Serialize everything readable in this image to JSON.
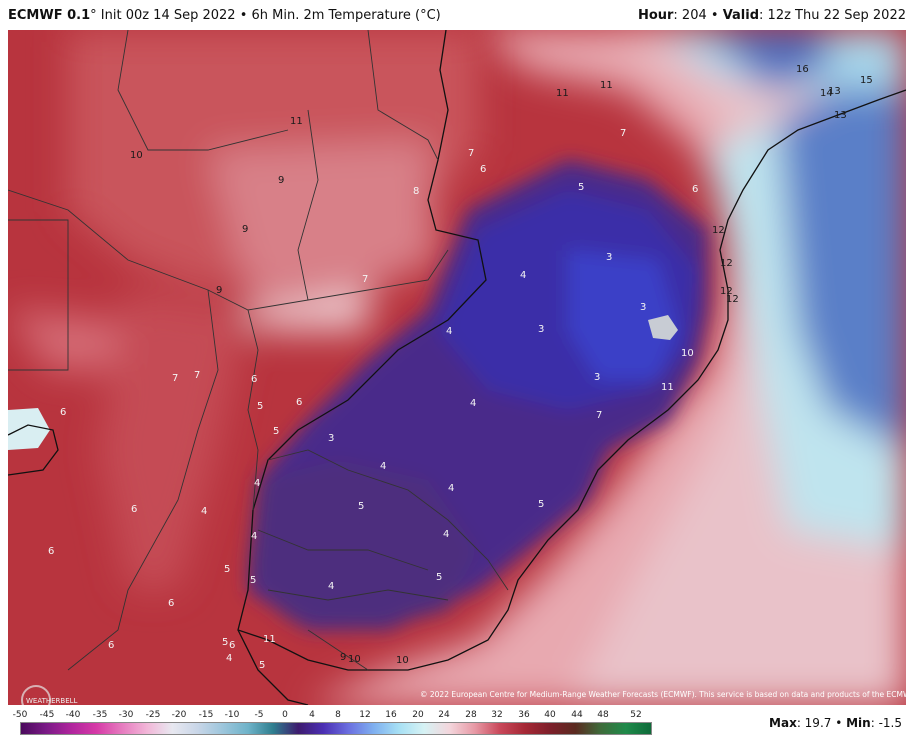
{
  "header": {
    "model": "ECMWF 0.1",
    "init_text": "° Init 00z 14 Sep 2022 • 6h Min. 2m Temperature (°C)",
    "hour_label": "Hour",
    "hour_value": ": 204 • ",
    "valid_label": "Valid",
    "valid_value": ": 12z Thu 22 Sep 2022"
  },
  "map": {
    "copyright": "© 2022 European Centre for Medium-Range Weather Forecasts (ECMWF). This service is based on data and products of the ECMWF.",
    "logo_text": "WEATHERBELL",
    "value_labels": [
      "10",
      "11",
      "11",
      "11",
      "16",
      "15",
      "14",
      "13",
      "7",
      "7",
      "6",
      "8",
      "9",
      "9",
      "9",
      "7",
      "6",
      "5",
      "3",
      "4",
      "4",
      "3",
      "3",
      "3",
      "10",
      "11",
      "7",
      "7",
      "6",
      "5",
      "6",
      "4",
      "5",
      "6",
      "3",
      "4",
      "4",
      "5",
      "4",
      "4",
      "5",
      "6",
      "6",
      "4",
      "5",
      "6",
      "4",
      "5",
      "4",
      "5",
      "11",
      "5",
      "6",
      "4",
      "5",
      "9",
      "10",
      "10",
      "12",
      "12",
      "12",
      "6",
      "7",
      "12",
      "13"
    ]
  },
  "colorbar": {
    "ticks": [
      "-50",
      "-45",
      "-40",
      "-35",
      "-30",
      "-25",
      "-20",
      "-15",
      "-10",
      "-5",
      "0",
      "4",
      "8",
      "12",
      "16",
      "20",
      "24",
      "28",
      "32",
      "36",
      "40",
      "44",
      "48",
      "52"
    ],
    "colors": [
      "#4a0a5c",
      "#7a1a86",
      "#b0259d",
      "#d63aa7",
      "#e67bbf",
      "#f2b6d8",
      "#e8e8f0",
      "#c9d6e8",
      "#9dc6dc",
      "#6fb3c9",
      "#2f7f8f",
      "#3d1b6e",
      "#4b2fb3",
      "#6b6fe0",
      "#7fb0f0",
      "#a7e0f4",
      "#d6f2f4",
      "#f3d6dc",
      "#e79aa6",
      "#c9485a",
      "#a52835",
      "#7d1f2a",
      "#5a2a20",
      "#3e6b3a",
      "#1f8a4a",
      "#0e6b3a"
    ]
  },
  "footer": {
    "max_label": "Max",
    "max_value": ": 19.7 • ",
    "min_label": "Min",
    "min_value": ": -1.5"
  }
}
